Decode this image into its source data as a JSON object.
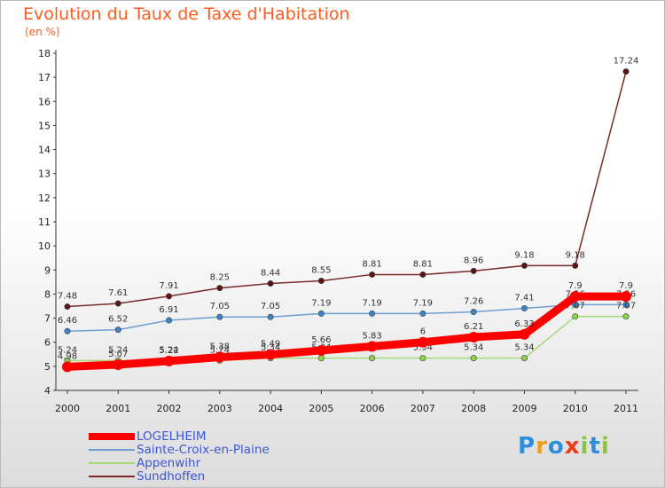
{
  "title": "Evolution du Taux de Taxe d'Habitation",
  "unit_label": "(en %)",
  "logo": {
    "letters": [
      "P",
      "r",
      "o",
      "x",
      "i",
      "t",
      "i"
    ],
    "colors": [
      "#2c8fd8",
      "#e8a11c",
      "#2c8fd8",
      "#ef3c1a",
      "#8bc34a",
      "#2c8fd8",
      "#8bc34a"
    ]
  },
  "chart_data": {
    "type": "line",
    "title": "Evolution du Taux de Taxe d'Habitation",
    "ylabel": "(en %)",
    "xlabel": "",
    "x": [
      "2000",
      "2001",
      "2002",
      "2003",
      "2004",
      "2005",
      "2006",
      "2007",
      "2008",
      "2009",
      "2010",
      "2011"
    ],
    "ylim": [
      4,
      18
    ],
    "yticks": [
      4,
      5,
      6,
      7,
      8,
      9,
      10,
      11,
      12,
      13,
      14,
      15,
      16,
      17,
      18
    ],
    "grid": false,
    "legend_position": "bottom-left",
    "series": [
      {
        "name": "Sundhoffen",
        "color": "#7b2a2a",
        "marker": "#5a1515",
        "values": [
          7.48,
          7.61,
          7.91,
          8.25,
          8.44,
          8.55,
          8.81,
          8.81,
          8.96,
          9.18,
          9.18,
          17.24
        ],
        "labels": [
          "7.48",
          "7.61",
          "7.91",
          "8.25",
          "8.44",
          "8.55",
          "8.81",
          "8.81",
          "8.96",
          "9.18",
          "9.18",
          "17.24"
        ]
      },
      {
        "name": "Sainte-Croix-en-Plaine",
        "color": "#6f9ecf",
        "marker": "#3e83c6",
        "values": [
          6.46,
          6.52,
          6.91,
          7.05,
          7.05,
          7.19,
          7.19,
          7.19,
          7.26,
          7.41,
          7.56,
          7.56
        ],
        "labels": [
          "6.46",
          "6.52",
          "6.91",
          "7.05",
          "7.05",
          "7.19",
          "7.19",
          "7.19",
          "7.26",
          "7.41",
          "7.56",
          "7.56"
        ]
      },
      {
        "name": "Appenwihr",
        "color": "#a6d979",
        "marker": "#8cd44a",
        "values": [
          5.24,
          5.24,
          5.24,
          5.24,
          5.34,
          5.34,
          5.34,
          5.34,
          5.34,
          5.34,
          7.07,
          7.07
        ],
        "labels": [
          "5.24",
          "5.24",
          "5.24",
          "5.24",
          "5.34",
          "5.34",
          "5.34",
          "5.34",
          "5.34",
          "5.34",
          "7.07",
          "7.07"
        ]
      },
      {
        "name": "LOGELHEIM",
        "color": "#ff0000",
        "marker": "#ff0000",
        "values": [
          4.98,
          5.07,
          5.22,
          5.38,
          5.49,
          5.66,
          5.83,
          6.0,
          6.21,
          6.33,
          7.9,
          7.9
        ],
        "labels": [
          "4.98",
          "5.07",
          "5.22",
          "5.38",
          "5.49",
          "5.66",
          "5.83",
          "6",
          "6.21",
          "6.33",
          "7.9",
          "7.9"
        ]
      }
    ]
  }
}
